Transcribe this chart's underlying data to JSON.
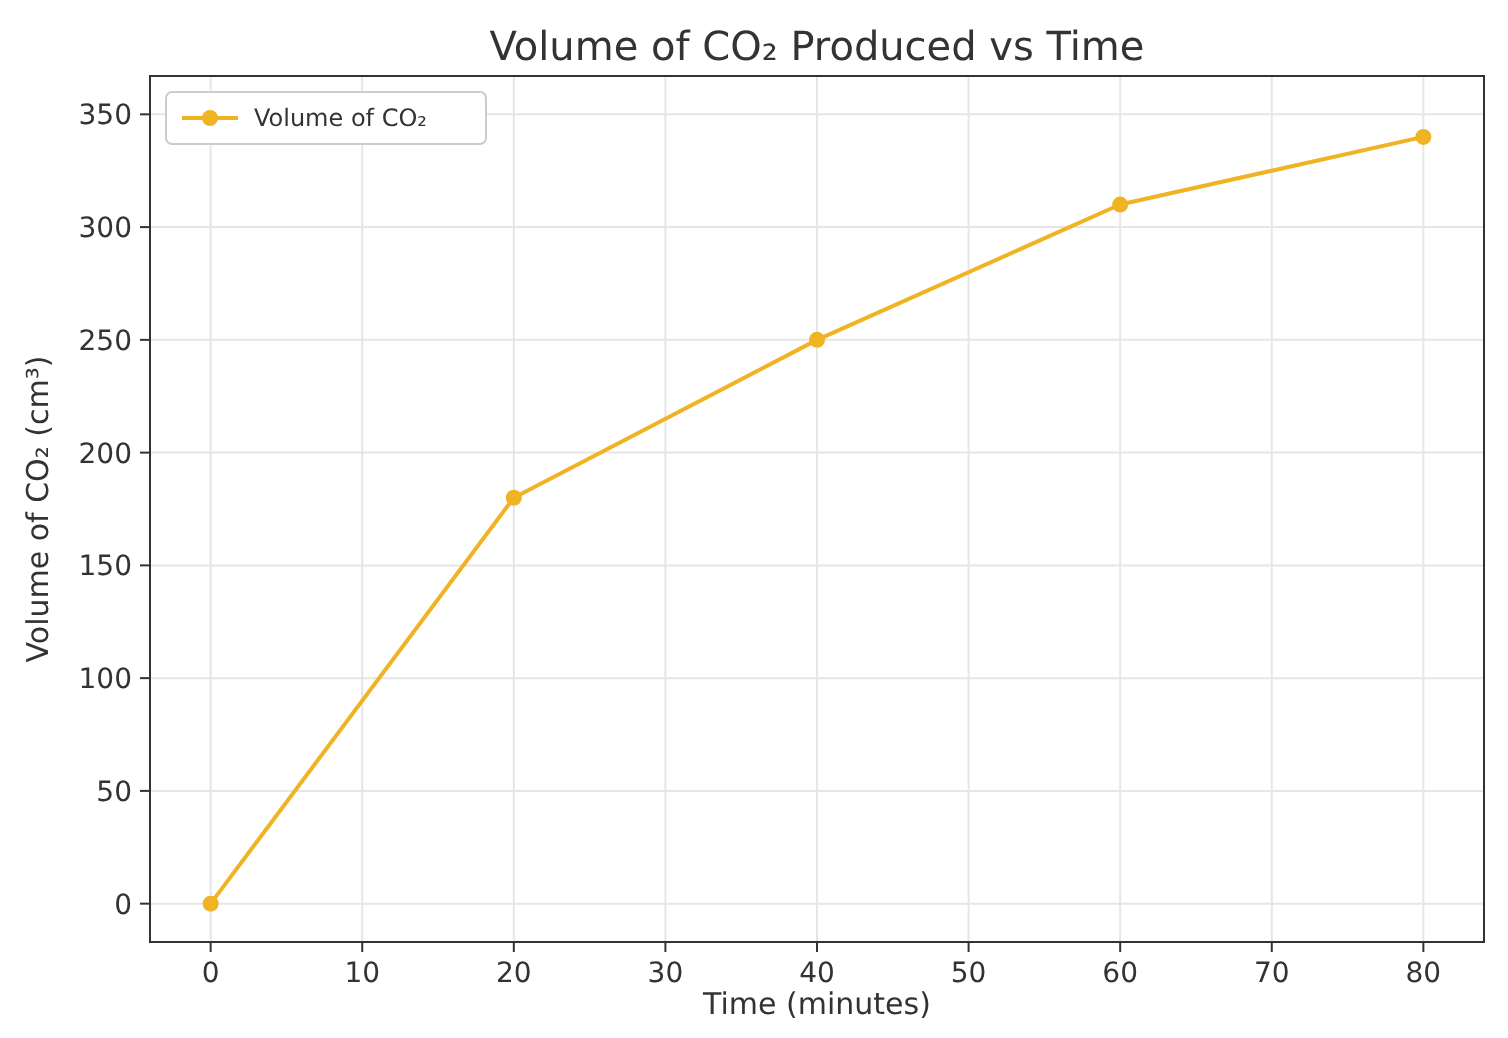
{
  "chart_data": {
    "type": "line",
    "title": "Volume of CO₂ Produced vs Time",
    "xlabel": "Time (minutes)",
    "ylabel": "Volume of CO₂ (cm³)",
    "x": [
      0,
      20,
      40,
      60,
      80
    ],
    "series": [
      {
        "name": "Volume of CO₂",
        "color": "#f0b323",
        "values": [
          0,
          180,
          250,
          310,
          340
        ]
      }
    ],
    "xlim": [
      -4,
      84
    ],
    "xticks": [
      0,
      10,
      20,
      30,
      40,
      50,
      60,
      70,
      80
    ],
    "ylim": [
      -17,
      367
    ],
    "yticks": [
      0,
      50,
      100,
      150,
      200,
      250,
      300,
      350
    ],
    "grid": true,
    "legend": "top left",
    "marker": "circle",
    "line_style": "solid"
  }
}
